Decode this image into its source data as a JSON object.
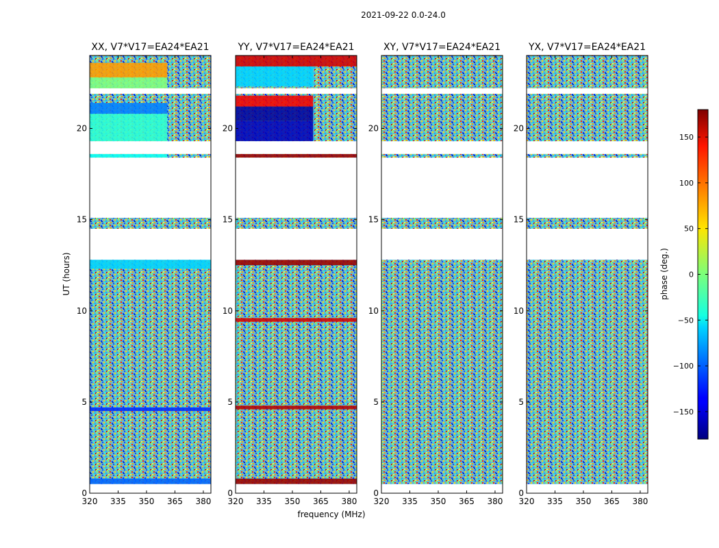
{
  "figure": {
    "suptitle": "2021-09-22 0.0-24.0",
    "xlabel": "frequency (MHz)",
    "ylabel": "UT (hours)",
    "colorbar_label": "phase (deg.)"
  },
  "chart_data": {
    "type": "heatmap",
    "title": "2021-09-22 0.0-24.0",
    "xlabel": "frequency (MHz)",
    "ylabel": "UT (hours)",
    "xlim": [
      320,
      384
    ],
    "ylim": [
      0,
      24
    ],
    "xticks": [
      320,
      335,
      350,
      365,
      380
    ],
    "xtick_labels": [
      "320",
      "335",
      "350",
      "365",
      "380"
    ],
    "yticks": [
      0,
      5,
      10,
      15,
      20
    ],
    "ytick_labels": [
      "0",
      "5",
      "10",
      "15",
      "20"
    ],
    "colorbar": {
      "label": "phase (deg.)",
      "range": [
        -180,
        180
      ],
      "ticks": [
        150,
        100,
        50,
        0,
        -50,
        -100,
        -150
      ],
      "tick_labels": [
        "150",
        "100",
        "50",
        "0",
        "−50",
        "−100",
        "−150"
      ],
      "colormap": "jet"
    },
    "data_gaps_hours": [
      [
        0.0,
        0.5
      ],
      [
        12.8,
        14.5
      ],
      [
        15.1,
        18.4
      ],
      [
        18.6,
        19.3
      ],
      [
        21.9,
        22.2
      ]
    ],
    "panels": [
      {
        "title": "XX, V7*V17=EA24*EA21",
        "phase_blocks": [
          {
            "t0": 22.2,
            "t1": 22.8,
            "f0": 320,
            "f1": 361,
            "phase": 0
          },
          {
            "t0": 22.8,
            "t1": 23.6,
            "f0": 320,
            "f1": 361,
            "phase": 80
          },
          {
            "t0": 20.8,
            "t1": 21.4,
            "f0": 320,
            "f1": 361,
            "phase": -90
          },
          {
            "t0": 19.3,
            "t1": 20.8,
            "f0": 320,
            "f1": 361,
            "phase": -30
          },
          {
            "t0": 18.4,
            "t1": 18.6,
            "f0": 320,
            "f1": 361,
            "phase": -40
          },
          {
            "t0": 12.3,
            "t1": 12.8,
            "f0": 320,
            "f1": 384,
            "phase": -60
          },
          {
            "t0": 0.5,
            "t1": 0.8,
            "f0": 320,
            "f1": 384,
            "phase": -100
          },
          {
            "t0": 4.5,
            "t1": 4.7,
            "f0": 320,
            "f1": 384,
            "phase": -120
          }
        ]
      },
      {
        "title": "YY, V7*V17=EA24*EA21",
        "phase_blocks": [
          {
            "t0": 22.3,
            "t1": 23.4,
            "f0": 320,
            "f1": 361,
            "phase": -60
          },
          {
            "t0": 23.4,
            "t1": 24.0,
            "f0": 320,
            "f1": 384,
            "phase": 150
          },
          {
            "t0": 21.2,
            "t1": 21.8,
            "f0": 320,
            "f1": 361,
            "phase": 140
          },
          {
            "t0": 20.4,
            "t1": 21.2,
            "f0": 320,
            "f1": 361,
            "phase": -170
          },
          {
            "t0": 19.3,
            "t1": 20.4,
            "f0": 320,
            "f1": 361,
            "phase": -160
          },
          {
            "t0": 18.4,
            "t1": 18.6,
            "f0": 320,
            "f1": 384,
            "phase": 170
          },
          {
            "t0": 12.5,
            "t1": 12.8,
            "f0": 320,
            "f1": 384,
            "phase": 170
          },
          {
            "t0": 9.4,
            "t1": 9.6,
            "f0": 320,
            "f1": 384,
            "phase": 150
          },
          {
            "t0": 4.6,
            "t1": 4.8,
            "f0": 320,
            "f1": 384,
            "phase": 160
          },
          {
            "t0": 0.5,
            "t1": 0.8,
            "f0": 320,
            "f1": 384,
            "phase": 170
          }
        ]
      },
      {
        "title": "XY, V7*V17=EA24*EA21",
        "phase_blocks": []
      },
      {
        "title": "YX, V7*V17=EA24*EA21",
        "phase_blocks": []
      }
    ]
  }
}
